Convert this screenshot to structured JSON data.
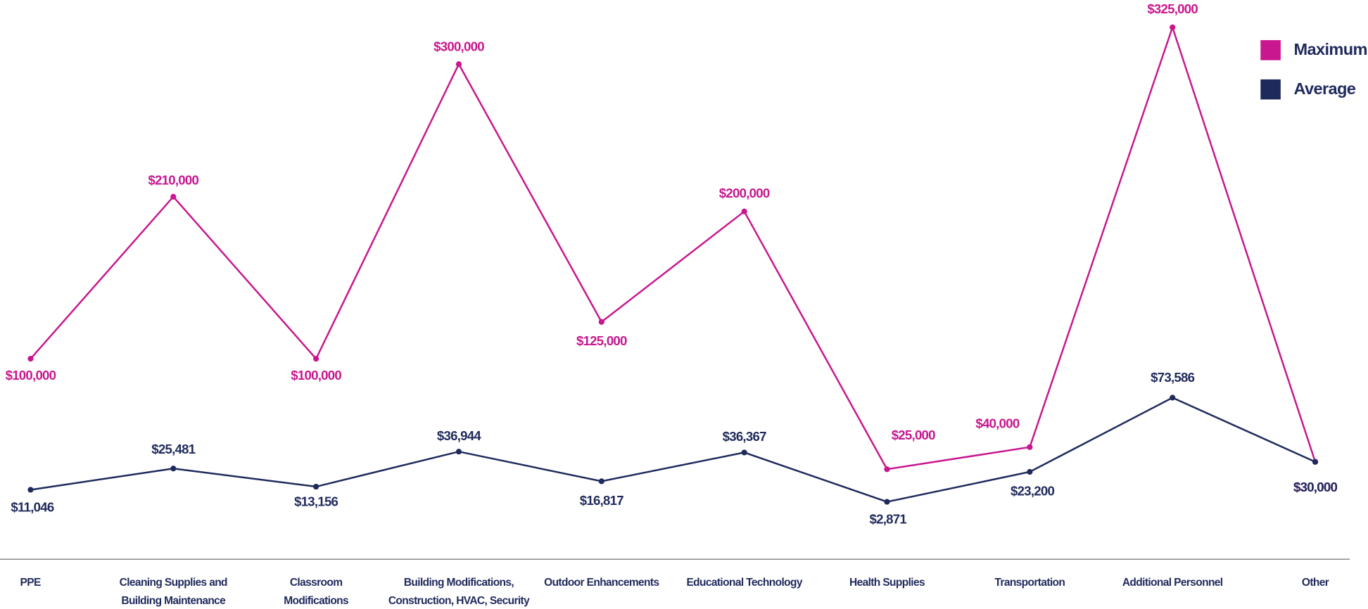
{
  "chart_data": {
    "type": "line",
    "categories": [
      "PPE",
      "Cleaning Supplies and Building Maintenance",
      "Classroom Modifications",
      "Building Modifications, Construction, HVAC, Security",
      "Outdoor Enhancements",
      "Educational Technology",
      "Health Supplies",
      "Transportation",
      "Additional Personnel",
      "Other"
    ],
    "series": [
      {
        "name": "Maximum",
        "color": "#c8178f",
        "values": [
          100000,
          210000,
          100000,
          300000,
          125000,
          200000,
          25000,
          40000,
          325000,
          30000
        ],
        "value_labels": [
          "$100,000",
          "$210,000",
          "$100,000",
          "$300,000",
          "$125,000",
          "$200,000",
          "$25,000",
          "$40,000",
          "$325,000",
          "$30,000"
        ]
      },
      {
        "name": "Average",
        "color": "#1f2a5c",
        "values": [
          11046,
          25481,
          13156,
          36944,
          16817,
          36367,
          2871,
          23200,
          73586,
          30000
        ],
        "value_labels": [
          "$11,046",
          "$25,481",
          "$13,156",
          "$36,944",
          "$16,817",
          "$36,367",
          "$2,871",
          "$23,200",
          "$73,586",
          "$30,000"
        ]
      }
    ],
    "ylim": [
      0,
      340000
    ],
    "legend": "top-right"
  }
}
